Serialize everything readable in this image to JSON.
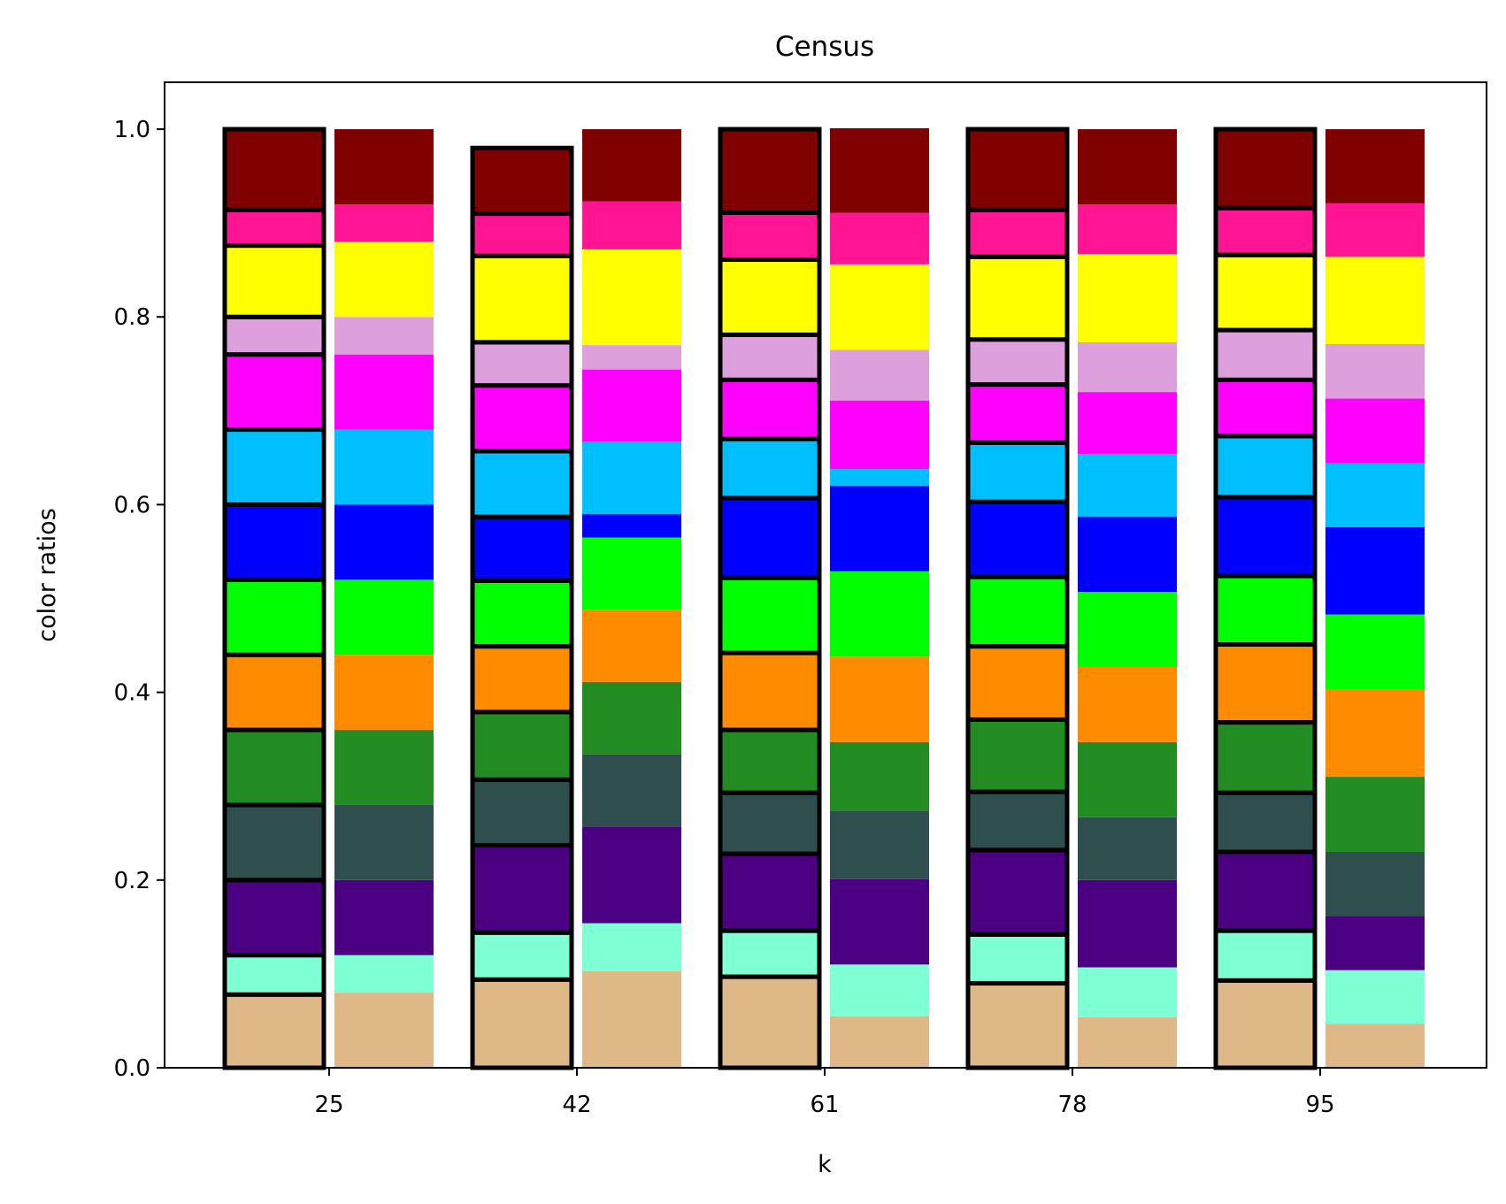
{
  "chart_data": {
    "type": "bar",
    "stacked": true,
    "title": "Census",
    "xlabel": "k",
    "ylabel": "color ratios",
    "ylim": [
      0,
      1.05
    ],
    "yticks": [
      "0.0",
      "0.2",
      "0.4",
      "0.6",
      "0.8",
      "1.0"
    ],
    "ytick_values": [
      0,
      0.2,
      0.4,
      0.6,
      0.8,
      1.0
    ],
    "categories": [
      "25",
      "42",
      "61",
      "78",
      "95"
    ],
    "grid": false,
    "legend": "none",
    "segment_colors": [
      "#deb887",
      "#7fffd4",
      "#4b0082",
      "#2f4f4f",
      "#228b22",
      "#ff8c00",
      "#00ff00",
      "#0000ff",
      "#00bfff",
      "#ff00ff",
      "#dda0dd",
      "#ffff00",
      "#ff1493",
      "#800000"
    ],
    "outlined_bar_edge_color": "#000000",
    "groups": [
      {
        "k": "25",
        "outlined": [
          0.078,
          0.042,
          0.08,
          0.08,
          0.08,
          0.08,
          0.08,
          0.08,
          0.08,
          0.08,
          0.04,
          0.076,
          0.038,
          0.086
        ],
        "plain": [
          0.08,
          0.04,
          0.08,
          0.08,
          0.08,
          0.08,
          0.08,
          0.08,
          0.08,
          0.08,
          0.04,
          0.08,
          0.04,
          0.08
        ]
      },
      {
        "k": "42",
        "outlined": [
          0.094,
          0.05,
          0.093,
          0.07,
          0.072,
          0.07,
          0.07,
          0.068,
          0.07,
          0.07,
          0.046,
          0.092,
          0.045,
          0.07
        ],
        "plain": [
          0.103,
          0.051,
          0.103,
          0.077,
          0.077,
          0.077,
          0.077,
          0.025,
          0.077,
          0.077,
          0.026,
          0.102,
          0.051,
          0.077
        ]
      },
      {
        "k": "61",
        "outlined": [
          0.097,
          0.049,
          0.082,
          0.065,
          0.067,
          0.082,
          0.08,
          0.085,
          0.063,
          0.063,
          0.048,
          0.08,
          0.05,
          0.089
        ],
        "plain": [
          0.055,
          0.055,
          0.091,
          0.073,
          0.073,
          0.091,
          0.091,
          0.091,
          0.018,
          0.073,
          0.054,
          0.091,
          0.055,
          0.09
        ]
      },
      {
        "k": "78",
        "outlined": [
          0.09,
          0.052,
          0.09,
          0.062,
          0.077,
          0.078,
          0.074,
          0.08,
          0.063,
          0.062,
          0.048,
          0.088,
          0.05,
          0.086
        ],
        "plain": [
          0.054,
          0.053,
          0.093,
          0.067,
          0.08,
          0.08,
          0.08,
          0.08,
          0.067,
          0.066,
          0.053,
          0.094,
          0.053,
          0.08
        ]
      },
      {
        "k": "95",
        "outlined": [
          0.093,
          0.053,
          0.084,
          0.063,
          0.075,
          0.083,
          0.073,
          0.084,
          0.065,
          0.06,
          0.053,
          0.08,
          0.05,
          0.084
        ],
        "plain": [
          0.047,
          0.057,
          0.058,
          0.068,
          0.08,
          0.093,
          0.08,
          0.093,
          0.068,
          0.069,
          0.058,
          0.093,
          0.057,
          0.079
        ]
      }
    ]
  }
}
